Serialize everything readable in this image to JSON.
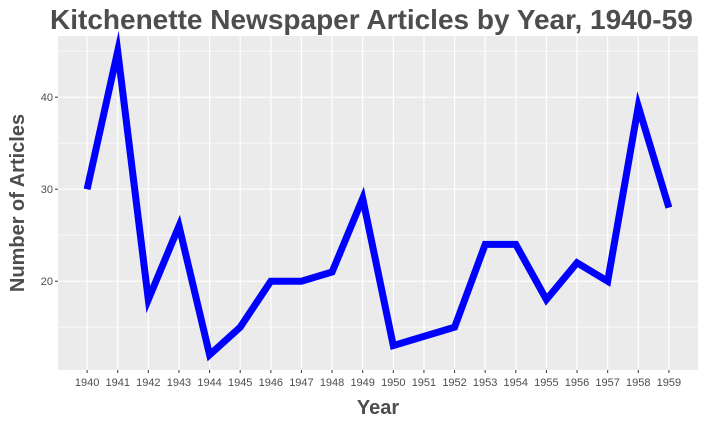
{
  "chart_data": {
    "type": "line",
    "title": "Kitchenette Newspaper Articles by Year, 1940-59",
    "xlabel": "Year",
    "ylabel": "Number of Articles",
    "x": [
      1940,
      1941,
      1942,
      1943,
      1944,
      1945,
      1946,
      1947,
      1948,
      1949,
      1950,
      1951,
      1952,
      1953,
      1954,
      1955,
      1956,
      1957,
      1958,
      1959
    ],
    "series": [
      {
        "values": [
          30,
          45,
          18,
          26,
          12,
          15,
          20,
          20,
          21,
          29,
          13,
          14,
          15,
          24,
          24,
          18,
          22,
          20,
          39,
          28
        ]
      }
    ],
    "xticks": [
      "1940",
      "1941",
      "1942",
      "1943",
      "1944",
      "1945",
      "1946",
      "1947",
      "1948",
      "1949",
      "1950",
      "1951",
      "1952",
      "1953",
      "1954",
      "1955",
      "1956",
      "1957",
      "1958",
      "1959"
    ],
    "yticks": [
      "20",
      "30",
      "40"
    ],
    "ytick_values": [
      20,
      30,
      40
    ],
    "ylim": [
      10.35,
      46.65
    ],
    "xlim": [
      1939.05,
      1959.95
    ],
    "grid": true,
    "line_color": "#0000ff",
    "panel_color": "#ebebeb",
    "grid_color": "#ffffff"
  }
}
